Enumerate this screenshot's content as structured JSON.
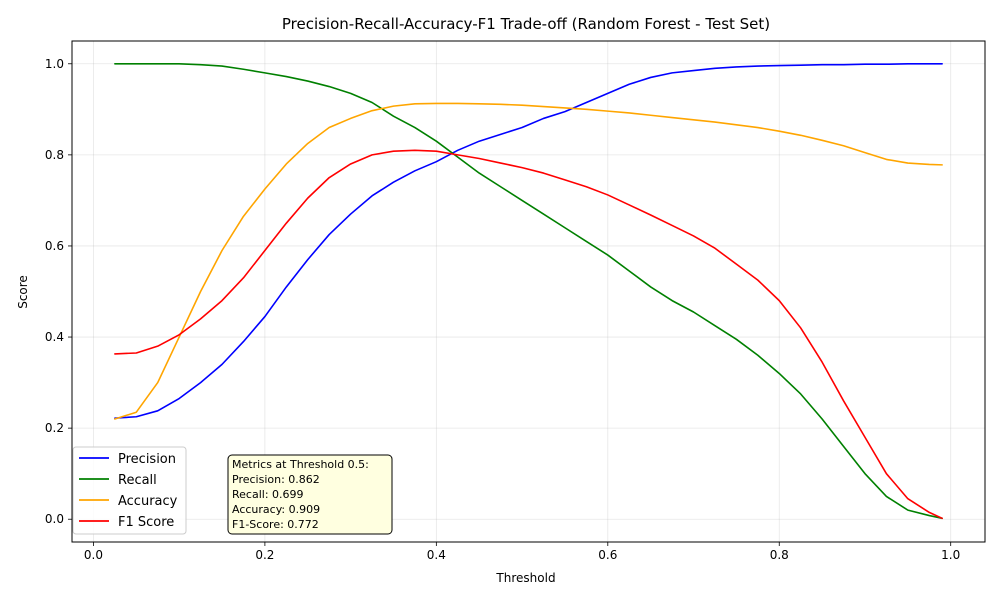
{
  "chart_data": {
    "type": "line",
    "title": "Precision-Recall-Accuracy-F1 Trade-off (Random Forest - Test Set)",
    "xlabel": "Threshold",
    "ylabel": "Score",
    "xlim": [
      -0.025,
      1.04
    ],
    "ylim": [
      -0.05,
      1.05
    ],
    "xticks": [
      0.0,
      0.2,
      0.4,
      0.6,
      0.8,
      1.0
    ],
    "xtick_labels": [
      "0.0",
      "0.2",
      "0.4",
      "0.6",
      "0.8",
      "1.0"
    ],
    "yticks": [
      0.0,
      0.2,
      0.4,
      0.6,
      0.8,
      1.0
    ],
    "ytick_labels": [
      "0.0",
      "0.2",
      "0.4",
      "0.6",
      "0.8",
      "1.0"
    ],
    "grid": true,
    "legend_position": "lower-left",
    "x": [
      0.025,
      0.05,
      0.075,
      0.1,
      0.125,
      0.15,
      0.175,
      0.2,
      0.225,
      0.25,
      0.275,
      0.3,
      0.325,
      0.35,
      0.375,
      0.4,
      0.425,
      0.45,
      0.475,
      0.5,
      0.525,
      0.55,
      0.575,
      0.6,
      0.625,
      0.65,
      0.675,
      0.7,
      0.725,
      0.75,
      0.775,
      0.8,
      0.825,
      0.85,
      0.875,
      0.9,
      0.925,
      0.95,
      0.975,
      0.99
    ],
    "series": [
      {
        "name": "Precision",
        "color": "#0000ff",
        "values": [
          0.222,
          0.225,
          0.238,
          0.265,
          0.3,
          0.34,
          0.39,
          0.445,
          0.51,
          0.57,
          0.625,
          0.67,
          0.71,
          0.74,
          0.765,
          0.785,
          0.81,
          0.83,
          0.845,
          0.86,
          0.88,
          0.895,
          0.915,
          0.935,
          0.955,
          0.97,
          0.98,
          0.985,
          0.99,
          0.993,
          0.995,
          0.996,
          0.997,
          0.998,
          0.998,
          0.999,
          0.999,
          1.0,
          1.0,
          1.0
        ]
      },
      {
        "name": "Recall",
        "color": "#008000",
        "values": [
          1.0,
          1.0,
          1.0,
          1.0,
          0.998,
          0.995,
          0.988,
          0.98,
          0.972,
          0.962,
          0.95,
          0.935,
          0.915,
          0.885,
          0.86,
          0.83,
          0.795,
          0.76,
          0.73,
          0.7,
          0.67,
          0.64,
          0.61,
          0.58,
          0.545,
          0.51,
          0.48,
          0.455,
          0.425,
          0.395,
          0.36,
          0.32,
          0.275,
          0.22,
          0.16,
          0.1,
          0.05,
          0.02,
          0.008,
          0.002
        ]
      },
      {
        "name": "Accuracy",
        "color": "#ffa500",
        "values": [
          0.22,
          0.235,
          0.3,
          0.4,
          0.5,
          0.59,
          0.665,
          0.725,
          0.78,
          0.825,
          0.86,
          0.88,
          0.897,
          0.907,
          0.912,
          0.913,
          0.913,
          0.912,
          0.911,
          0.909,
          0.906,
          0.903,
          0.9,
          0.896,
          0.892,
          0.887,
          0.882,
          0.877,
          0.872,
          0.866,
          0.86,
          0.852,
          0.843,
          0.832,
          0.82,
          0.805,
          0.79,
          0.782,
          0.779,
          0.778
        ]
      },
      {
        "name": "F1 Score",
        "color": "#ff0000",
        "values": [
          0.363,
          0.365,
          0.38,
          0.405,
          0.44,
          0.48,
          0.53,
          0.59,
          0.65,
          0.705,
          0.75,
          0.78,
          0.8,
          0.808,
          0.81,
          0.808,
          0.8,
          0.792,
          0.782,
          0.772,
          0.76,
          0.745,
          0.73,
          0.712,
          0.69,
          0.668,
          0.645,
          0.622,
          0.595,
          0.56,
          0.525,
          0.48,
          0.42,
          0.345,
          0.26,
          0.18,
          0.1,
          0.045,
          0.015,
          0.002
        ]
      }
    ],
    "annotation": {
      "lines": [
        "Metrics at Threshold 0.5:",
        "Precision: 0.862",
        "Recall: 0.699",
        "Accuracy: 0.909",
        "F1-Score: 0.772"
      ],
      "background": "#ffffe0"
    }
  }
}
